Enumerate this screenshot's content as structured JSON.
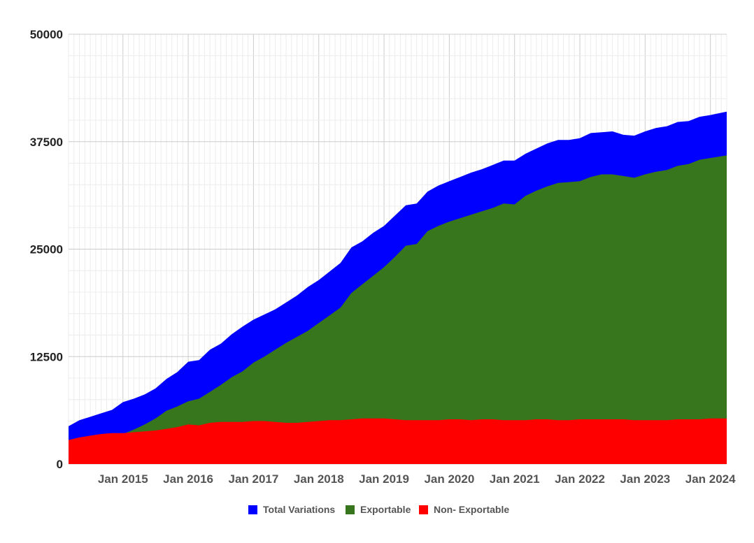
{
  "chart_data": {
    "type": "area",
    "stacking": "overlaid",
    "x_start": "2014-03",
    "x_end": "2024-04",
    "ylim": [
      0,
      50000
    ],
    "yticks": [
      0,
      12500,
      25000,
      37500,
      50000
    ],
    "ytick_labels": [
      "0",
      "12500",
      "25000",
      "37500",
      "50000"
    ],
    "xtick_labels": [
      "Jan 2015",
      "Jan 2016",
      "Jan 2017",
      "Jan 2018",
      "Jan 2019",
      "Jan 2020",
      "Jan 2021",
      "Jan 2022",
      "Jan 2023",
      "Jan 2024"
    ],
    "grid": true,
    "legend_position": "bottom",
    "series": [
      {
        "name": "Total Variations",
        "color": "#0000ff",
        "points": [
          [
            "2014-03",
            4400
          ],
          [
            "2014-05",
            5100
          ],
          [
            "2014-07",
            5500
          ],
          [
            "2014-09",
            5900
          ],
          [
            "2014-11",
            6300
          ],
          [
            "2015-01",
            7200
          ],
          [
            "2015-03",
            7600
          ],
          [
            "2015-05",
            8100
          ],
          [
            "2015-07",
            8800
          ],
          [
            "2015-09",
            9900
          ],
          [
            "2015-11",
            10700
          ],
          [
            "2016-01",
            11900
          ],
          [
            "2016-03",
            12100
          ],
          [
            "2016-05",
            13300
          ],
          [
            "2016-07",
            14000
          ],
          [
            "2016-09",
            15100
          ],
          [
            "2016-11",
            16000
          ],
          [
            "2017-01",
            16800
          ],
          [
            "2017-03",
            17400
          ],
          [
            "2017-05",
            18000
          ],
          [
            "2017-07",
            18800
          ],
          [
            "2017-09",
            19600
          ],
          [
            "2017-11",
            20600
          ],
          [
            "2018-01",
            21400
          ],
          [
            "2018-03",
            22400
          ],
          [
            "2018-05",
            23400
          ],
          [
            "2018-07",
            25200
          ],
          [
            "2018-09",
            25900
          ],
          [
            "2018-11",
            26900
          ],
          [
            "2019-01",
            27700
          ],
          [
            "2019-03",
            28900
          ],
          [
            "2019-05",
            30100
          ],
          [
            "2019-07",
            30300
          ],
          [
            "2019-09",
            31700
          ],
          [
            "2019-11",
            32400
          ],
          [
            "2020-01",
            32900
          ],
          [
            "2020-03",
            33400
          ],
          [
            "2020-05",
            33900
          ],
          [
            "2020-07",
            34300
          ],
          [
            "2020-09",
            34800
          ],
          [
            "2020-11",
            35300
          ],
          [
            "2021-01",
            35300
          ],
          [
            "2021-03",
            36100
          ],
          [
            "2021-05",
            36700
          ],
          [
            "2021-07",
            37300
          ],
          [
            "2021-09",
            37700
          ],
          [
            "2021-11",
            37700
          ],
          [
            "2022-01",
            37900
          ],
          [
            "2022-03",
            38500
          ],
          [
            "2022-05",
            38600
          ],
          [
            "2022-07",
            38700
          ],
          [
            "2022-09",
            38300
          ],
          [
            "2022-11",
            38200
          ],
          [
            "2023-01",
            38700
          ],
          [
            "2023-03",
            39100
          ],
          [
            "2023-05",
            39300
          ],
          [
            "2023-07",
            39800
          ],
          [
            "2023-09",
            39900
          ],
          [
            "2023-11",
            40400
          ],
          [
            "2024-01",
            40600
          ],
          [
            "2024-04",
            41000
          ]
        ]
      },
      {
        "name": "Exportable",
        "color": "#38761d",
        "points": [
          [
            "2014-03",
            1500
          ],
          [
            "2014-05",
            2100
          ],
          [
            "2014-07",
            2400
          ],
          [
            "2014-09",
            2600
          ],
          [
            "2014-11",
            2900
          ],
          [
            "2015-01",
            3500
          ],
          [
            "2015-03",
            4000
          ],
          [
            "2015-05",
            4600
          ],
          [
            "2015-07",
            5300
          ],
          [
            "2015-09",
            6200
          ],
          [
            "2015-11",
            6700
          ],
          [
            "2016-01",
            7300
          ],
          [
            "2016-03",
            7600
          ],
          [
            "2016-05",
            8400
          ],
          [
            "2016-07",
            9200
          ],
          [
            "2016-09",
            10100
          ],
          [
            "2016-11",
            10800
          ],
          [
            "2017-01",
            11800
          ],
          [
            "2017-03",
            12500
          ],
          [
            "2017-05",
            13300
          ],
          [
            "2017-07",
            14100
          ],
          [
            "2017-09",
            14800
          ],
          [
            "2017-11",
            15500
          ],
          [
            "2018-01",
            16400
          ],
          [
            "2018-03",
            17300
          ],
          [
            "2018-05",
            18200
          ],
          [
            "2018-07",
            19900
          ],
          [
            "2018-09",
            20900
          ],
          [
            "2018-11",
            21900
          ],
          [
            "2019-01",
            22900
          ],
          [
            "2019-03",
            24100
          ],
          [
            "2019-05",
            25400
          ],
          [
            "2019-07",
            25600
          ],
          [
            "2019-09",
            27100
          ],
          [
            "2019-11",
            27700
          ],
          [
            "2020-01",
            28200
          ],
          [
            "2020-03",
            28600
          ],
          [
            "2020-05",
            29000
          ],
          [
            "2020-07",
            29400
          ],
          [
            "2020-09",
            29800
          ],
          [
            "2020-11",
            30300
          ],
          [
            "2021-01",
            30200
          ],
          [
            "2021-03",
            31200
          ],
          [
            "2021-05",
            31800
          ],
          [
            "2021-07",
            32300
          ],
          [
            "2021-09",
            32700
          ],
          [
            "2021-11",
            32800
          ],
          [
            "2022-01",
            32900
          ],
          [
            "2022-03",
            33400
          ],
          [
            "2022-05",
            33700
          ],
          [
            "2022-07",
            33700
          ],
          [
            "2022-09",
            33500
          ],
          [
            "2022-11",
            33300
          ],
          [
            "2023-01",
            33700
          ],
          [
            "2023-03",
            34000
          ],
          [
            "2023-05",
            34200
          ],
          [
            "2023-07",
            34700
          ],
          [
            "2023-09",
            34900
          ],
          [
            "2023-11",
            35400
          ],
          [
            "2024-01",
            35600
          ],
          [
            "2024-04",
            35900
          ]
        ]
      },
      {
        "name": "Non- Exportable",
        "color": "#ff0000",
        "points": [
          [
            "2014-03",
            2800
          ],
          [
            "2014-05",
            3100
          ],
          [
            "2014-07",
            3300
          ],
          [
            "2014-09",
            3500
          ],
          [
            "2014-11",
            3600
          ],
          [
            "2015-01",
            3600
          ],
          [
            "2015-03",
            3700
          ],
          [
            "2015-05",
            3800
          ],
          [
            "2015-07",
            3900
          ],
          [
            "2015-09",
            4100
          ],
          [
            "2015-11",
            4300
          ],
          [
            "2016-01",
            4600
          ],
          [
            "2016-03",
            4500
          ],
          [
            "2016-05",
            4800
          ],
          [
            "2016-07",
            4900
          ],
          [
            "2016-09",
            4900
          ],
          [
            "2016-11",
            4900
          ],
          [
            "2017-01",
            5000
          ],
          [
            "2017-03",
            5000
          ],
          [
            "2017-05",
            4900
          ],
          [
            "2017-07",
            4800
          ],
          [
            "2017-09",
            4800
          ],
          [
            "2017-11",
            4900
          ],
          [
            "2018-01",
            5000
          ],
          [
            "2018-03",
            5100
          ],
          [
            "2018-05",
            5100
          ],
          [
            "2018-07",
            5200
          ],
          [
            "2018-09",
            5300
          ],
          [
            "2018-11",
            5300
          ],
          [
            "2019-01",
            5300
          ],
          [
            "2019-03",
            5200
          ],
          [
            "2019-05",
            5100
          ],
          [
            "2019-07",
            5100
          ],
          [
            "2019-09",
            5100
          ],
          [
            "2019-11",
            5100
          ],
          [
            "2020-01",
            5200
          ],
          [
            "2020-03",
            5200
          ],
          [
            "2020-05",
            5100
          ],
          [
            "2020-07",
            5200
          ],
          [
            "2020-09",
            5200
          ],
          [
            "2020-11",
            5100
          ],
          [
            "2021-01",
            5100
          ],
          [
            "2021-03",
            5100
          ],
          [
            "2021-05",
            5200
          ],
          [
            "2021-07",
            5200
          ],
          [
            "2021-09",
            5100
          ],
          [
            "2021-11",
            5100
          ],
          [
            "2022-01",
            5200
          ],
          [
            "2022-03",
            5200
          ],
          [
            "2022-05",
            5200
          ],
          [
            "2022-07",
            5200
          ],
          [
            "2022-09",
            5200
          ],
          [
            "2022-11",
            5100
          ],
          [
            "2023-01",
            5100
          ],
          [
            "2023-03",
            5100
          ],
          [
            "2023-05",
            5100
          ],
          [
            "2023-07",
            5200
          ],
          [
            "2023-09",
            5200
          ],
          [
            "2023-11",
            5200
          ],
          [
            "2024-01",
            5300
          ],
          [
            "2024-04",
            5300
          ]
        ]
      }
    ]
  }
}
